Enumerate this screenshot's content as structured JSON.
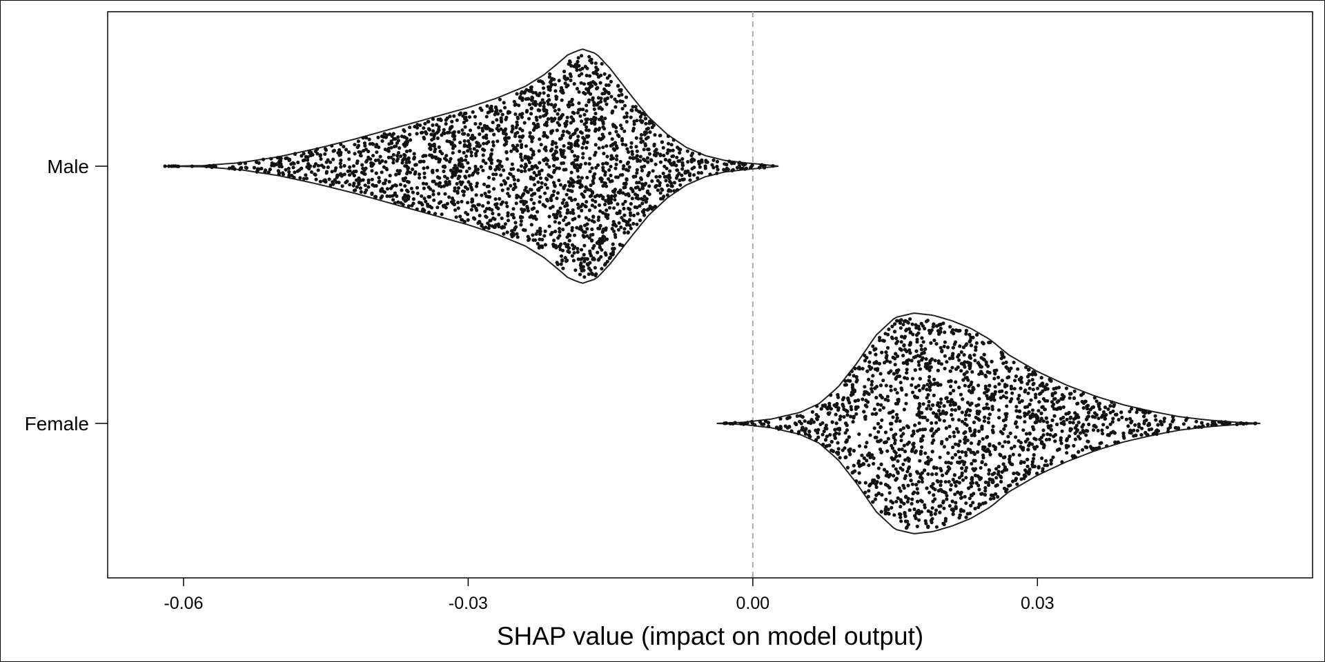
{
  "chart_data": {
    "type": "violin",
    "xlabel": "SHAP value (impact on model output)",
    "ylabel": "",
    "xlim": [
      -0.068,
      0.059
    ],
    "x_ticks": [
      {
        "value": -0.06,
        "label": "-0.06"
      },
      {
        "value": -0.03,
        "label": "-0.03"
      },
      {
        "value": 0.0,
        "label": "0.00"
      },
      {
        "value": 0.03,
        "label": "0.03"
      }
    ],
    "reference_line": {
      "x": 0.0,
      "style": "dashed",
      "color": "#aaaaaa"
    },
    "grid": false,
    "categories": [
      {
        "label": "Male",
        "min": -0.062,
        "max": 0.0027,
        "peak": -0.0195,
        "density": [
          [
            -0.062,
            0.0
          ],
          [
            -0.058,
            0.005
          ],
          [
            -0.054,
            0.03
          ],
          [
            -0.05,
            0.08
          ],
          [
            -0.046,
            0.15
          ],
          [
            -0.042,
            0.23
          ],
          [
            -0.038,
            0.32
          ],
          [
            -0.034,
            0.41
          ],
          [
            -0.03,
            0.5
          ],
          [
            -0.027,
            0.58
          ],
          [
            -0.024,
            0.68
          ],
          [
            -0.022,
            0.78
          ],
          [
            -0.0205,
            0.88
          ],
          [
            -0.0195,
            0.95
          ],
          [
            -0.018,
            1.0
          ],
          [
            -0.0165,
            0.96
          ],
          [
            -0.015,
            0.83
          ],
          [
            -0.013,
            0.62
          ],
          [
            -0.011,
            0.42
          ],
          [
            -0.009,
            0.27
          ],
          [
            -0.007,
            0.16
          ],
          [
            -0.005,
            0.09
          ],
          [
            -0.003,
            0.05
          ],
          [
            -0.001,
            0.03
          ],
          [
            0.001,
            0.015
          ],
          [
            0.0027,
            0.0
          ]
        ]
      },
      {
        "label": "Female",
        "min": -0.0038,
        "max": 0.0535,
        "peak": 0.0155,
        "density": [
          [
            -0.0038,
            0.0
          ],
          [
            -0.001,
            0.01
          ],
          [
            0.002,
            0.04
          ],
          [
            0.005,
            0.1
          ],
          [
            0.007,
            0.18
          ],
          [
            0.009,
            0.33
          ],
          [
            0.011,
            0.55
          ],
          [
            0.013,
            0.8
          ],
          [
            0.015,
            0.96
          ],
          [
            0.017,
            1.0
          ],
          [
            0.019,
            0.98
          ],
          [
            0.021,
            0.93
          ],
          [
            0.023,
            0.86
          ],
          [
            0.025,
            0.76
          ],
          [
            0.027,
            0.62
          ],
          [
            0.03,
            0.47
          ],
          [
            0.033,
            0.35
          ],
          [
            0.036,
            0.25
          ],
          [
            0.039,
            0.17
          ],
          [
            0.042,
            0.11
          ],
          [
            0.045,
            0.06
          ],
          [
            0.048,
            0.03
          ],
          [
            0.051,
            0.01
          ],
          [
            0.0535,
            0.0
          ]
        ]
      }
    ]
  }
}
